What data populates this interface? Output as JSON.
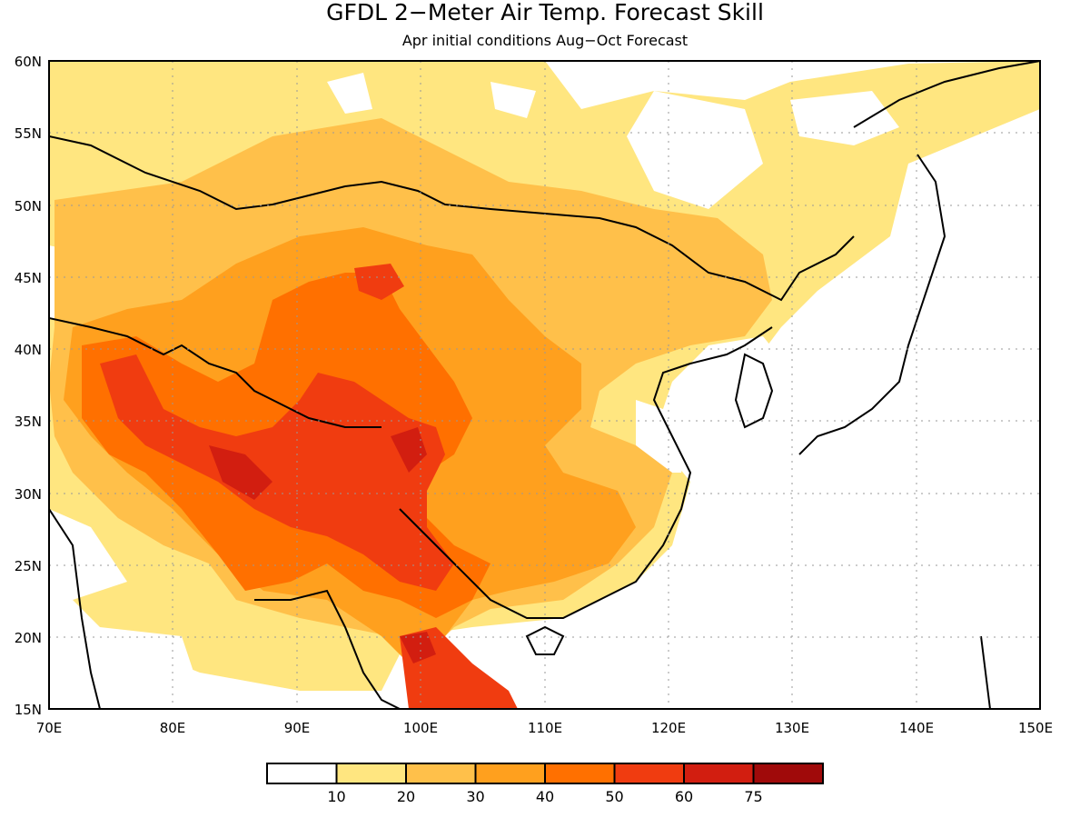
{
  "title": "GFDL 2−Meter Air Temp. Forecast Skill",
  "subtitle": "Apr initial conditions  Aug−Oct Forecast",
  "map": {
    "lon_range": [
      70,
      150
    ],
    "lat_range": [
      15,
      60
    ],
    "lat_ticks": [
      "60N",
      "55N",
      "50N",
      "45N",
      "40N",
      "35N",
      "30N",
      "25N",
      "20N",
      "15N"
    ],
    "lon_ticks": [
      "70E",
      "80E",
      "90E",
      "100E",
      "110E",
      "120E",
      "130E",
      "140E",
      "150E"
    ],
    "gridlines": "dotted"
  },
  "colorbar": {
    "labels": [
      "10",
      "20",
      "30",
      "40",
      "50",
      "60",
      "75"
    ],
    "colors": [
      "#ffffff",
      "#ffe680",
      "#ffc04a",
      "#ffa01e",
      "#ff7000",
      "#f03c10",
      "#d21e10",
      "#a00a0a"
    ]
  },
  "colors": {
    "coastline": "#000000",
    "frame": "#000000",
    "grid": "#999999"
  }
}
